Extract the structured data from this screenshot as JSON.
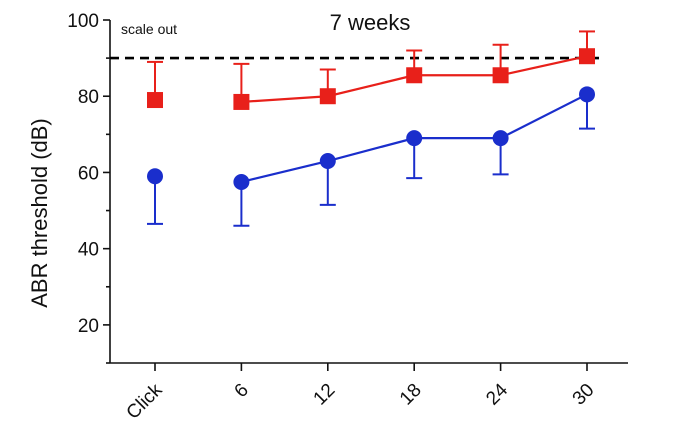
{
  "chart_data": {
    "type": "line",
    "title": "7 weeks",
    "xlabel": "",
    "ylabel": "ABR threshold (dB)",
    "categories": [
      "Click",
      "6",
      "12",
      "18",
      "24",
      "30"
    ],
    "ylim": [
      10,
      100
    ],
    "yticks": [
      20,
      40,
      60,
      80,
      100
    ],
    "grid": false,
    "reference_line": {
      "y": 90,
      "style": "dashed",
      "color": "#000000",
      "label": "scale out"
    },
    "series": [
      {
        "color": "#e8201a",
        "marker": "square",
        "error_direction": "up",
        "values": [
          79,
          78.5,
          80,
          85.5,
          85.5,
          90.5
        ],
        "errors": [
          10,
          10,
          7,
          6.5,
          8,
          6.5
        ],
        "connect_from_index": 1
      },
      {
        "color": "#1a2ecc",
        "marker": "circle",
        "error_direction": "down",
        "values": [
          59,
          57.5,
          63,
          69,
          69,
          80.5
        ],
        "errors": [
          12.5,
          11.5,
          11.5,
          10.5,
          9.5,
          9
        ],
        "connect_from_index": 1
      }
    ]
  }
}
